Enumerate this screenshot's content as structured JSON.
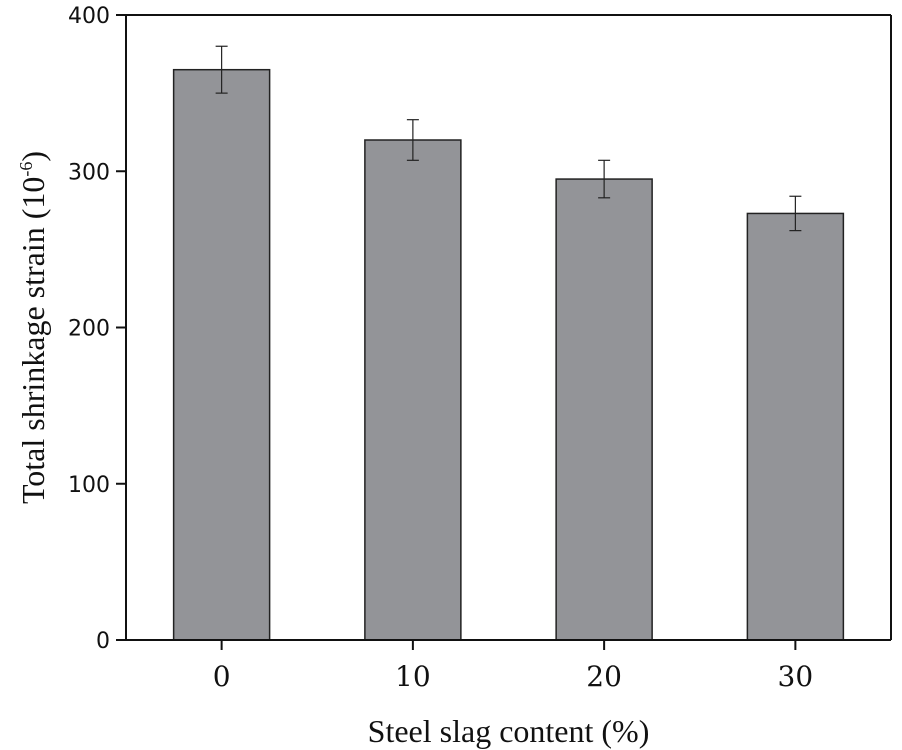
{
  "chart_data": {
    "type": "bar",
    "title": "",
    "xlabel": "Steel slag content (%)",
    "ylabel": {
      "main": "Total shrinkage strain (10",
      "exponent": "-6",
      "close": ")"
    },
    "categories": [
      "0",
      "10",
      "20",
      "30"
    ],
    "values": [
      365,
      320,
      295,
      273
    ],
    "error": [
      15,
      13,
      12,
      11
    ],
    "ylim": [
      0,
      400
    ],
    "yticks": [
      "0",
      "100",
      "200",
      "300",
      "400"
    ],
    "grid": false,
    "legend": "none",
    "colors": {
      "bar": "#939498",
      "bar_edge": "#222222",
      "axis": "#111111"
    }
  }
}
